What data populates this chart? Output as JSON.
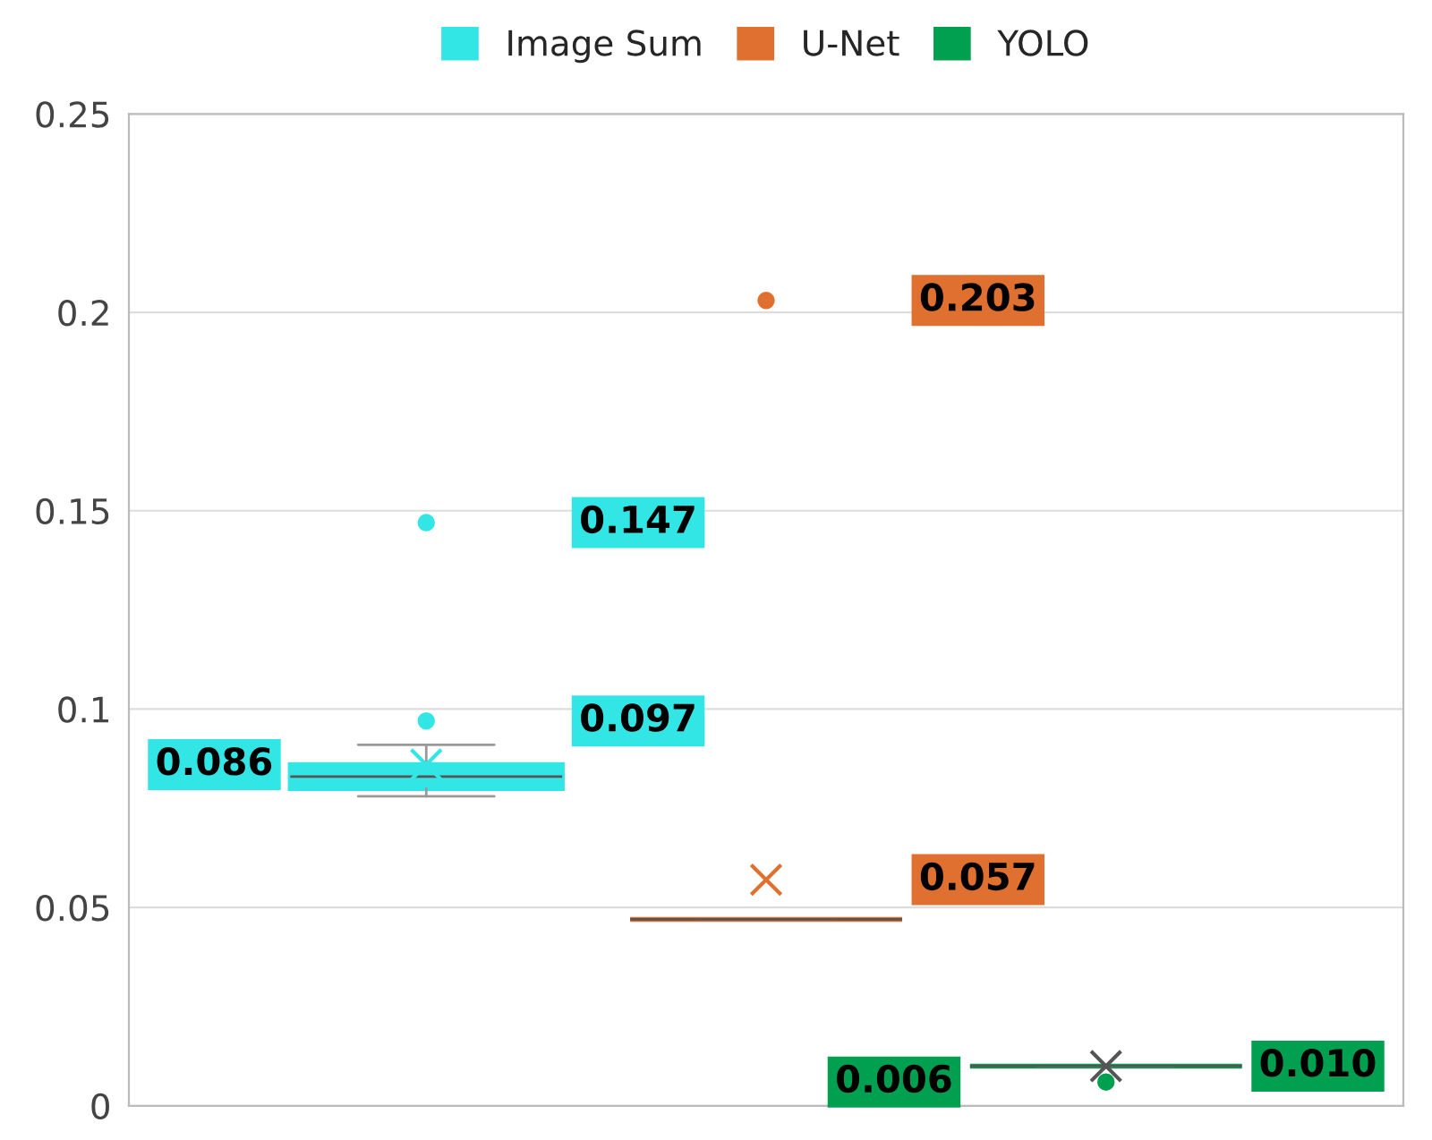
{
  "chart_data": {
    "type": "box",
    "categories": [
      null
    ],
    "series": [
      {
        "name": "Image Sum",
        "color": "#33e6e6",
        "boxes": [
          {
            "low": 0.078,
            "q1": 0.08,
            "median": 0.083,
            "q3": 0.086,
            "high": 0.091,
            "mean": 0.086,
            "outliers": [
              0.097,
              0.147
            ]
          }
        ]
      },
      {
        "name": "U-Net",
        "color": "#e0702f",
        "boxes": [
          {
            "low": 0.047,
            "q1": 0.047,
            "median": 0.047,
            "q3": 0.047,
            "high": 0.047,
            "mean": 0.057,
            "outliers": [
              0.203
            ]
          }
        ]
      },
      {
        "name": "YOLO",
        "color": "#00a050",
        "boxes": [
          {
            "low": 0.01,
            "q1": 0.01,
            "median": 0.01,
            "q3": 0.01,
            "high": 0.01,
            "mean": 0.01,
            "outliers": [
              0.006
            ]
          }
        ]
      }
    ],
    "annotations": [
      "0.147",
      "0.097",
      "0.086",
      "0.203",
      "0.057",
      "0.010",
      "0.006"
    ],
    "ylim": [
      0,
      0.25
    ],
    "yticks": [
      0,
      0.05,
      0.1,
      0.15,
      0.2,
      0.25
    ],
    "grid": "y",
    "legend": "top"
  }
}
